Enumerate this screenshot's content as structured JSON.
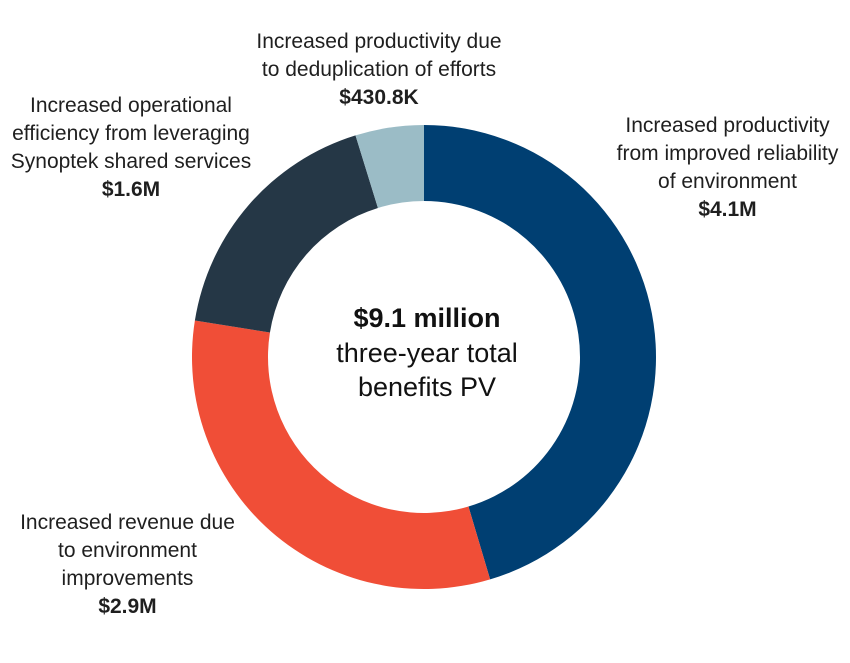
{
  "chart_data": {
    "type": "pie",
    "variant": "donut",
    "total_label": "$9.1 million",
    "total_subtitle": "three-year total benefits PV",
    "slices": [
      {
        "name": "Increased productivity from improved reliability of environment",
        "value_label": "$4.1M",
        "value": 4.1,
        "color": "#003f72"
      },
      {
        "name": "Increased revenue due to environment improvements",
        "value_label": "$2.9M",
        "value": 2.9,
        "color": "#f04e37"
      },
      {
        "name": "Increased operational efficiency from leveraging Synoptek shared services",
        "value_label": "$1.6M",
        "value": 1.6,
        "color": "#253746"
      },
      {
        "name": "Increased productivity due to deduplication of efforts",
        "value_label": "$430.8K",
        "value": 0.4308,
        "color": "#9bbcc6"
      }
    ]
  }
}
